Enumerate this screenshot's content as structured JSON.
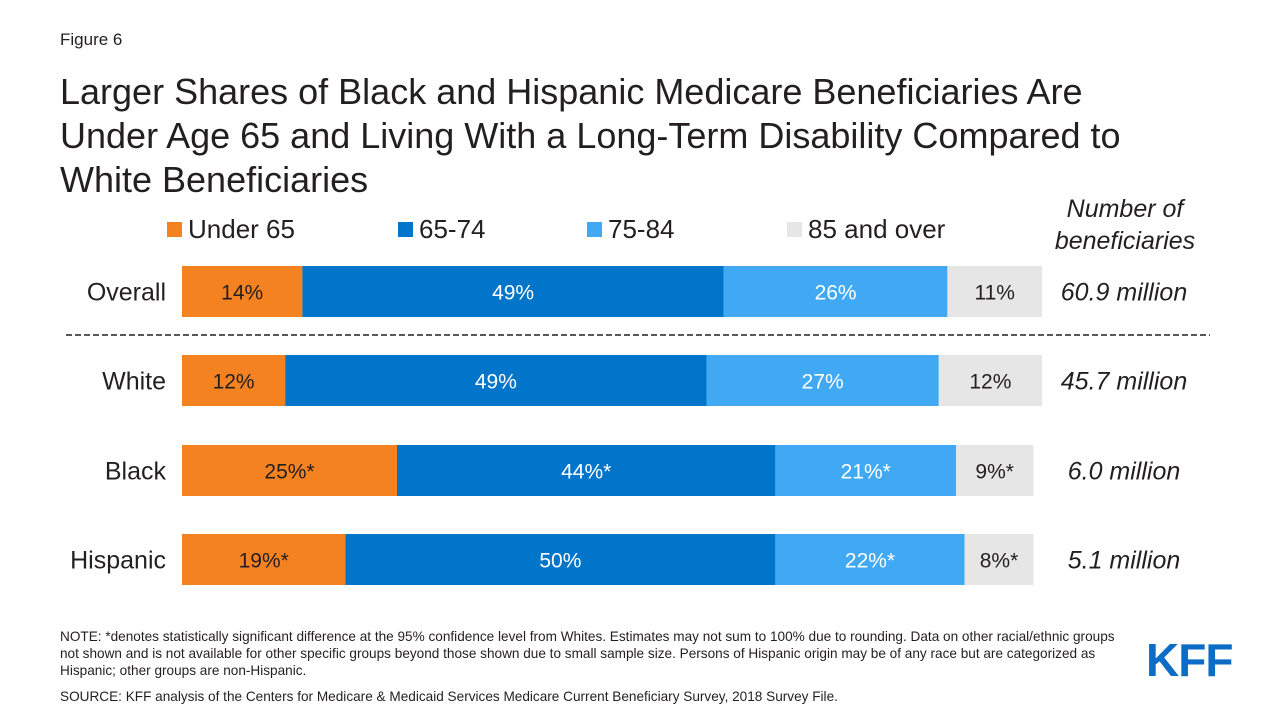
{
  "figure_label": "Figure 6",
  "title": "Larger Shares of Black and Hispanic Medicare Beneficiaries Are Under Age 65 and Living With a Long-Term Disability Compared to White Beneficiaries",
  "number_header": "Number of beneficiaries",
  "note": "NOTE: *denotes statistically significant difference at the 95% confidence level from Whites. Estimates may not sum to 100% due to rounding. Data on other racial/ethnic groups not shown and is not available for other specific groups beyond those shown due to small sample size. Persons of Hispanic origin may be of any race but are categorized as Hispanic; other groups are non-Hispanic.",
  "source": "SOURCE: KFF analysis of the Centers for Medicare & Medicaid Services Medicare Current Beneficiary Survey, 2018 Survey File.",
  "logo_text": "KFF",
  "chart_data": {
    "type": "bar",
    "stacked": true,
    "orientation": "horizontal",
    "xlim": [
      0,
      100
    ],
    "legend_position": "top",
    "categories": [
      "Overall",
      "White",
      "Black",
      "Hispanic"
    ],
    "series": [
      {
        "name": "Under 65",
        "color": "#f58220",
        "text_color": "#231f20",
        "values": [
          14,
          12,
          25,
          19
        ],
        "labels": [
          "14%",
          "12%",
          "25%*",
          "19%*"
        ]
      },
      {
        "name": "65-74",
        "color": "#0075c9",
        "text_color": "#ffffff",
        "values": [
          49,
          49,
          44,
          50
        ],
        "labels": [
          "49%",
          "49%",
          "44%*",
          "50%"
        ]
      },
      {
        "name": "75-84",
        "color": "#41a9f4",
        "text_color": "#ffffff",
        "values": [
          26,
          27,
          21,
          22
        ],
        "labels": [
          "26%",
          "27%",
          "21%*",
          "22%*"
        ]
      },
      {
        "name": "85 and over",
        "color": "#e6e6e6",
        "text_color": "#231f20",
        "values": [
          11,
          12,
          9,
          8
        ],
        "labels": [
          "11%",
          "12%",
          "9%*",
          "8%*"
        ]
      }
    ],
    "beneficiaries": [
      "60.9 million",
      "45.7 million",
      "6.0 million",
      "5.1 million"
    ]
  }
}
